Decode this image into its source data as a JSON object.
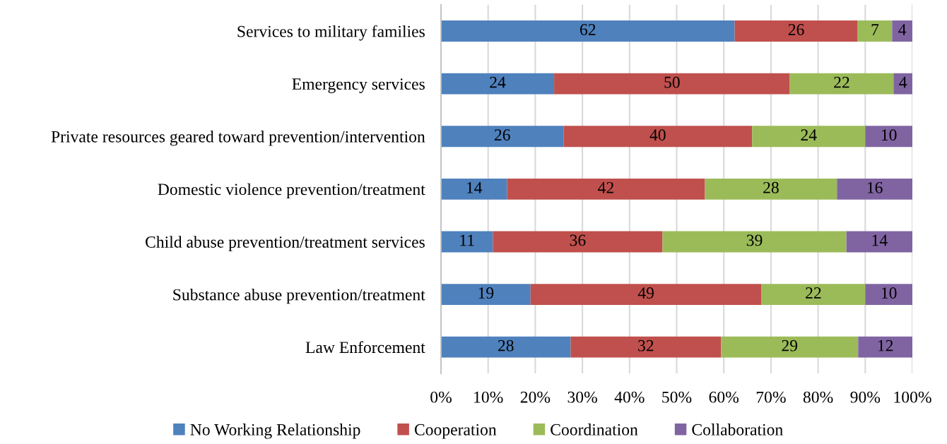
{
  "chart_data": {
    "type": "bar",
    "orientation": "horizontal",
    "stacked": true,
    "categories": [
      "Services to military families",
      "Emergency services",
      "Private resources geared toward prevention/intervention",
      "Domestic violence prevention/treatment",
      "Child abuse prevention/treatment services",
      "Substance abuse prevention/treatment",
      "Law Enforcement"
    ],
    "series": [
      {
        "name": "No Working Relationship",
        "color": "#4f81bd",
        "values": [
          62.3,
          24,
          26,
          14,
          11,
          19,
          27.5
        ],
        "value_labels": [
          "62",
          "24",
          "26",
          "14",
          "11",
          "19",
          "28"
        ]
      },
      {
        "name": "Cooperation",
        "color": "#c0504d",
        "values": [
          26.1,
          50,
          40,
          42,
          36,
          49,
          31.9
        ],
        "value_labels": [
          "26",
          "50",
          "40",
          "42",
          "36",
          "49",
          "32"
        ]
      },
      {
        "name": "Coordination",
        "color": "#9bbb59",
        "values": [
          7.3,
          22,
          24,
          28,
          39,
          22,
          29.1
        ],
        "value_labels": [
          "7",
          "22",
          "24",
          "28",
          "39",
          "22",
          "29"
        ]
      },
      {
        "name": "Collaboration",
        "color": "#8064a2",
        "values": [
          4.3,
          4,
          10,
          16,
          14,
          10,
          11.5
        ],
        "value_labels": [
          "4",
          "4",
          "10",
          "16",
          "14",
          "10",
          "12"
        ]
      }
    ],
    "xlim": [
      0,
      100
    ],
    "xticks": [
      {
        "value": 0,
        "label": "0%"
      },
      {
        "value": 10,
        "label": "10%"
      },
      {
        "value": 20,
        "label": "20%"
      },
      {
        "value": 30,
        "label": "30%"
      },
      {
        "value": 40,
        "label": "40%"
      },
      {
        "value": 50,
        "label": "50%"
      },
      {
        "value": 60,
        "label": "60%"
      },
      {
        "value": 70,
        "label": "70%"
      },
      {
        "value": 80,
        "label": "80%"
      },
      {
        "value": 90,
        "label": "90%"
      },
      {
        "value": 100,
        "label": "100%"
      }
    ],
    "grid": "x",
    "legend": "bottom"
  }
}
